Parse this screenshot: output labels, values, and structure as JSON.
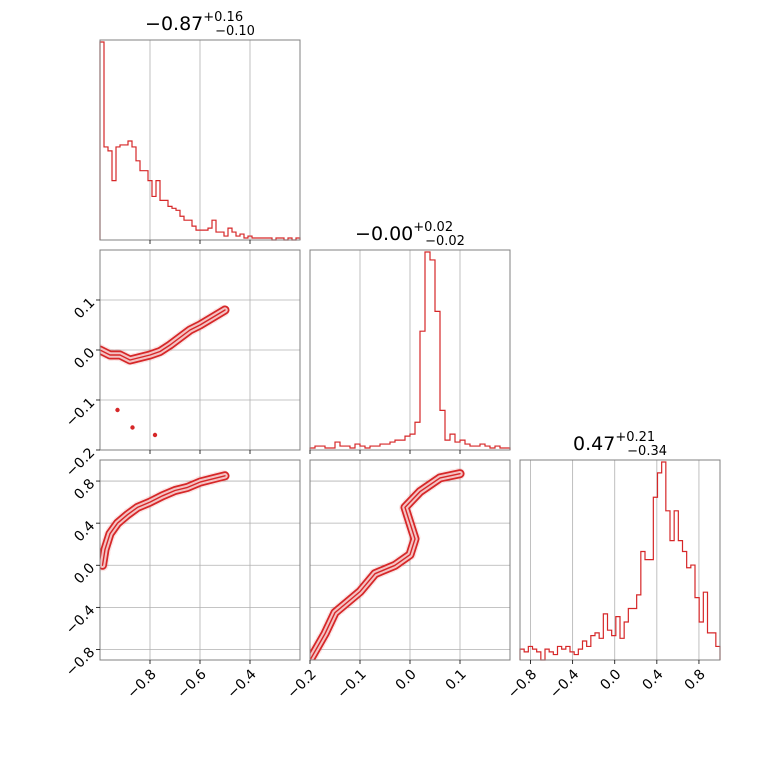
{
  "chart_data": {
    "type": "corner",
    "color": "#d62728",
    "parameters": [
      {
        "median": "−0.87",
        "plus": "+0.16",
        "minus": "−0.10",
        "range": [
          -1.0,
          -0.2
        ],
        "ticks": [
          -0.8,
          -0.6,
          -0.4
        ],
        "tick_labels": [
          "−0.8",
          "−0.6",
          "−0.4"
        ]
      },
      {
        "median": "−0.00",
        "plus": "+0.02",
        "minus": "−0.02",
        "range": [
          -0.2,
          0.2
        ],
        "ticks": [
          -0.2,
          -0.1,
          0.0,
          0.1
        ],
        "tick_labels": [
          "−0.2",
          "−0.1",
          "0.0",
          "0.1"
        ]
      },
      {
        "median": "0.47",
        "plus": "+0.21",
        "minus": "−0.34",
        "range": [
          -0.9,
          1.0
        ],
        "ticks": [
          -0.8,
          -0.4,
          0.0,
          0.4,
          0.8
        ],
        "tick_labels": [
          "−0.8",
          "−0.4",
          "0.0",
          "0.4",
          "0.8"
        ]
      }
    ],
    "row_ticks": {
      "p1": {
        "ticks": [
          -0.2,
          -0.1,
          0.0,
          0.1
        ],
        "tick_labels": [
          "−0.2",
          "−0.1",
          "0.0",
          "0.1"
        ]
      },
      "p2": {
        "ticks": [
          -0.8,
          -0.4,
          0.0,
          0.4,
          0.8
        ],
        "tick_labels": [
          "−0.8",
          "−0.4",
          "0.0",
          "0.4",
          "0.8"
        ]
      }
    },
    "histograms": [
      {
        "param": 0,
        "bins_range": [
          -1.0,
          -0.2
        ],
        "counts": [
          100,
          47,
          45,
          30,
          47,
          48,
          48,
          50,
          47,
          40,
          35,
          35,
          30,
          22,
          30,
          20,
          20,
          17,
          16,
          15,
          12,
          10,
          10,
          7,
          5,
          5,
          5,
          6,
          10,
          4,
          4,
          2,
          6,
          4,
          2,
          3,
          1,
          2,
          1,
          1,
          1,
          1,
          1,
          0,
          1,
          1,
          0,
          1,
          0,
          1
        ]
      },
      {
        "param": 1,
        "bins_range": [
          -0.2,
          0.2
        ],
        "counts": [
          1,
          2,
          2,
          1,
          1,
          4,
          2,
          2,
          1,
          3,
          2,
          1,
          2,
          2,
          3,
          3,
          4,
          5,
          5,
          7,
          8,
          14,
          60,
          100,
          96,
          70,
          20,
          5,
          8,
          4,
          5,
          3,
          2,
          2,
          3,
          2,
          1,
          2,
          1,
          1
        ]
      },
      {
        "param": 2,
        "bins_range": [
          -0.9,
          1.0
        ],
        "counts": [
          4,
          3,
          5,
          4,
          3,
          0,
          4,
          3,
          2,
          5,
          4,
          5,
          3,
          2,
          4,
          7,
          5,
          9,
          10,
          8,
          17,
          11,
          9,
          16,
          8,
          14,
          19,
          19,
          24,
          40,
          37,
          37,
          60,
          69,
          73,
          55,
          44,
          55,
          44,
          40,
          34,
          35,
          23,
          14,
          25,
          10,
          10,
          5
        ]
      }
    ],
    "joint": [
      {
        "x_param": 0,
        "y_param": 1,
        "curve": [
          [
            -1.0,
            0.0
          ],
          [
            -0.96,
            -0.01
          ],
          [
            -0.92,
            -0.01
          ],
          [
            -0.88,
            -0.02
          ],
          [
            -0.84,
            -0.015
          ],
          [
            -0.8,
            -0.01
          ],
          [
            -0.76,
            -0.003
          ],
          [
            -0.72,
            0.01
          ],
          [
            -0.68,
            0.025
          ],
          [
            -0.64,
            0.04
          ],
          [
            -0.6,
            0.05
          ],
          [
            -0.55,
            0.065
          ],
          [
            -0.5,
            0.08
          ]
        ],
        "outliers": [
          [
            -0.93,
            -0.12
          ],
          [
            -0.87,
            -0.155
          ],
          [
            -0.78,
            -0.17
          ]
        ]
      },
      {
        "x_param": 0,
        "y_param": 2,
        "curve": [
          [
            -0.99,
            0.0
          ],
          [
            -0.98,
            0.15
          ],
          [
            -0.96,
            0.3
          ],
          [
            -0.93,
            0.4
          ],
          [
            -0.89,
            0.48
          ],
          [
            -0.85,
            0.55
          ],
          [
            -0.8,
            0.6
          ],
          [
            -0.75,
            0.66
          ],
          [
            -0.7,
            0.71
          ],
          [
            -0.65,
            0.74
          ],
          [
            -0.6,
            0.79
          ],
          [
            -0.55,
            0.82
          ],
          [
            -0.5,
            0.85
          ]
        ]
      },
      {
        "x_param": 1,
        "y_param": 2,
        "curve": [
          [
            -0.2,
            -0.9
          ],
          [
            -0.17,
            -0.65
          ],
          [
            -0.15,
            -0.45
          ],
          [
            -0.1,
            -0.25
          ],
          [
            -0.07,
            -0.08
          ],
          [
            -0.03,
            0.0
          ],
          [
            0.0,
            0.1
          ],
          [
            0.01,
            0.25
          ],
          [
            0.0,
            0.4
          ],
          [
            -0.01,
            0.55
          ],
          [
            0.02,
            0.7
          ],
          [
            0.06,
            0.83
          ],
          [
            0.1,
            0.87
          ]
        ]
      }
    ]
  }
}
